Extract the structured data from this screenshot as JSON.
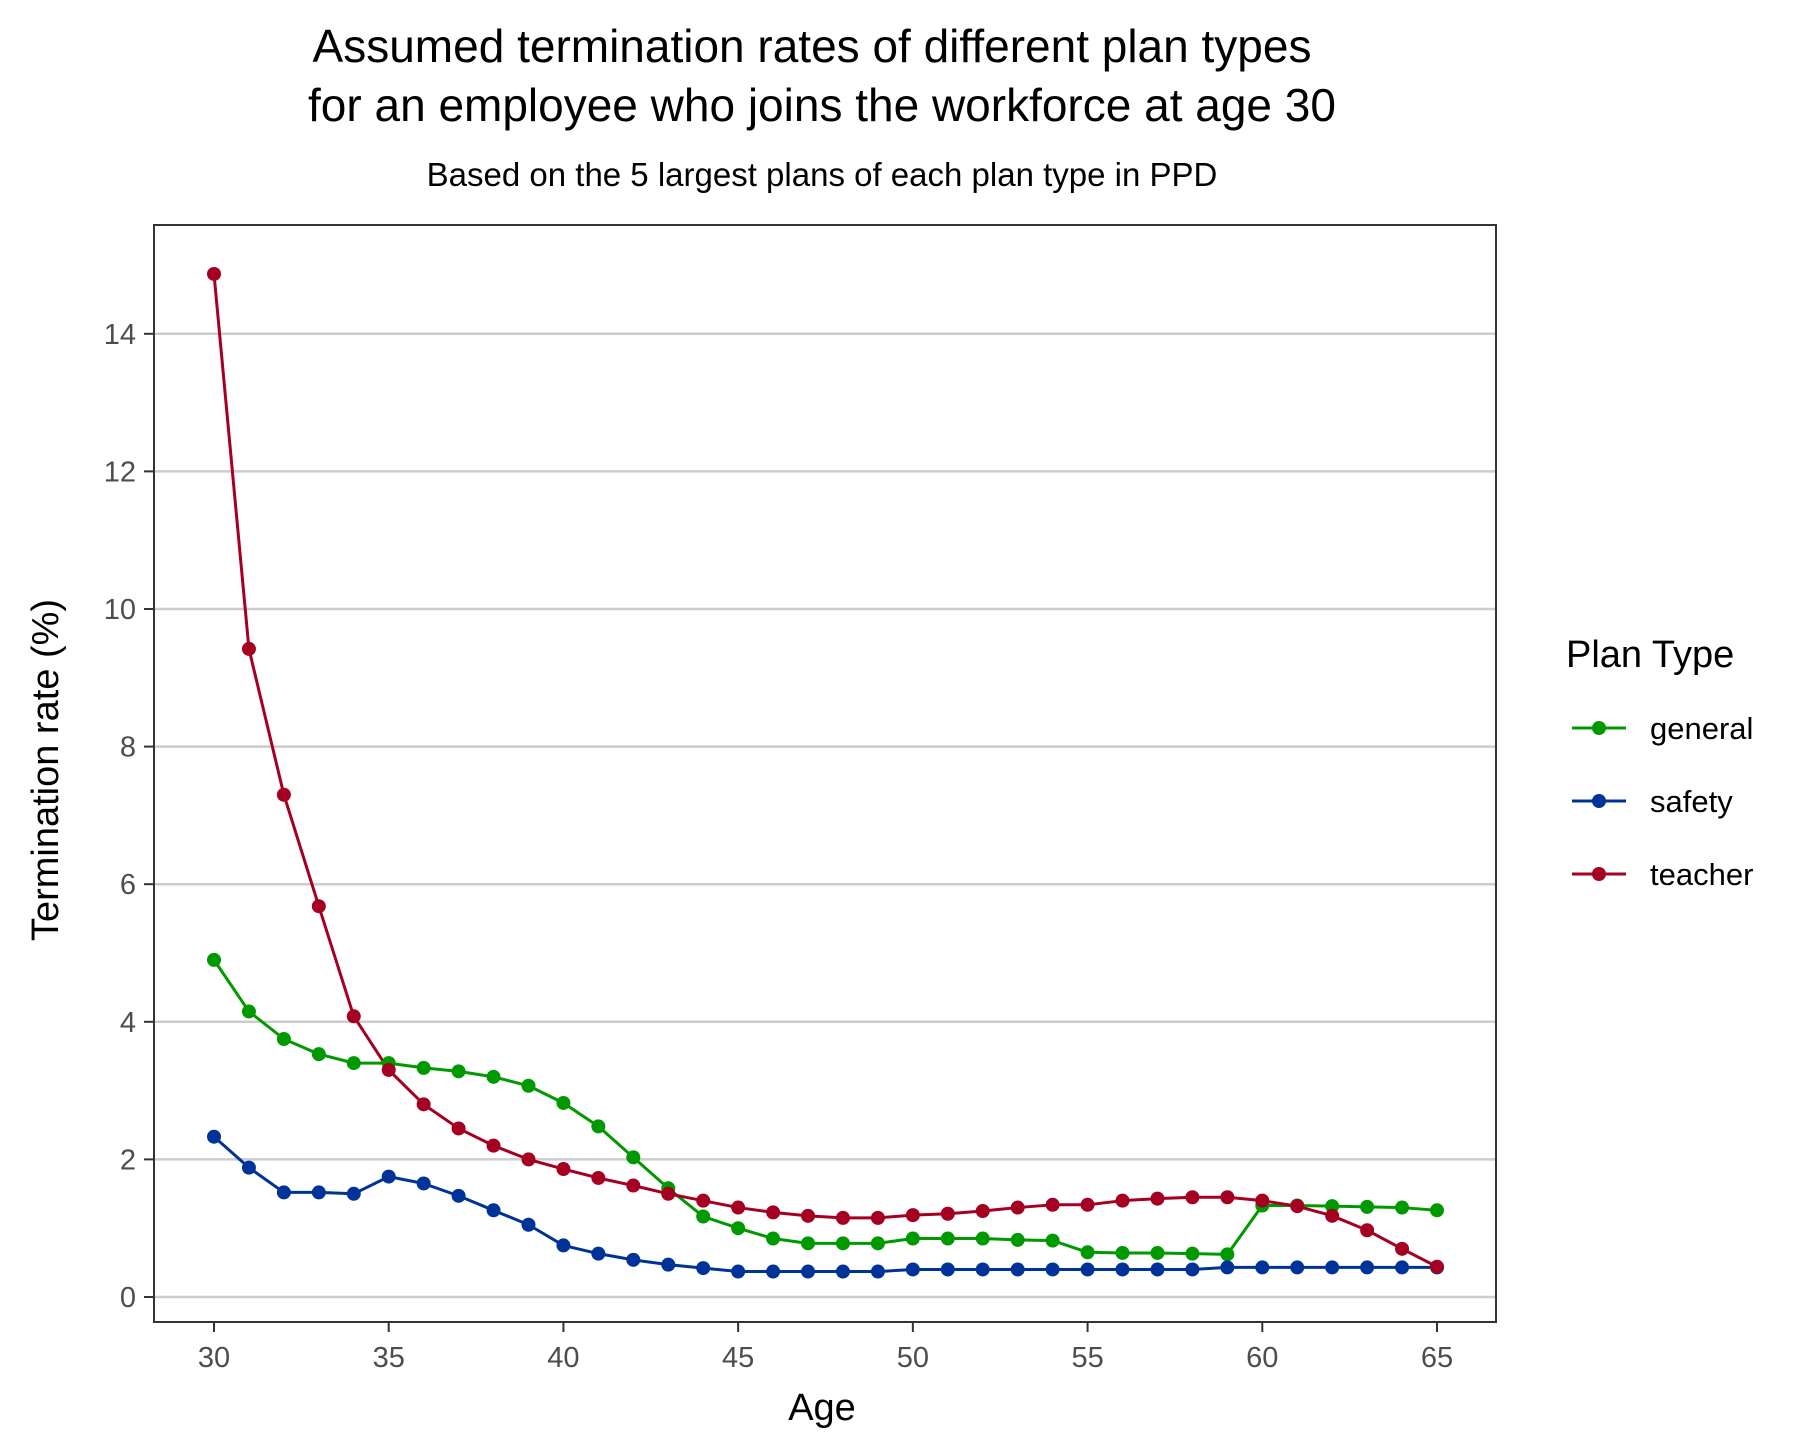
{
  "chart_data": {
    "type": "line",
    "title_line1": "Assumed termination rates of different plan types",
    "title_line2": "for an employee who joins the workforce at age 30",
    "subtitle": "Based on the 5 largest plans of each plan type in PPD",
    "xlabel": "Age",
    "ylabel": "Termination rate (%)",
    "xlim": [
      30,
      65
    ],
    "ylim": [
      0,
      15
    ],
    "x_ticks": [
      "30",
      "35",
      "40",
      "45",
      "50",
      "55",
      "60",
      "65"
    ],
    "y_ticks": [
      "0",
      "2",
      "4",
      "6",
      "8",
      "10",
      "12",
      "14"
    ],
    "grid": "horizontal major",
    "legend_title": "Plan Type",
    "legend_position": "right",
    "x": [
      30,
      31,
      32,
      33,
      34,
      35,
      36,
      37,
      38,
      39,
      40,
      41,
      42,
      43,
      44,
      45,
      46,
      47,
      48,
      49,
      50,
      51,
      52,
      53,
      54,
      55,
      56,
      57,
      58,
      59,
      60,
      61,
      62,
      63,
      64,
      65
    ],
    "series": [
      {
        "name": "general",
        "color": "#009900",
        "values": [
          4.9,
          4.15,
          3.75,
          3.53,
          3.4,
          3.4,
          3.33,
          3.28,
          3.2,
          3.07,
          2.82,
          2.48,
          2.03,
          1.58,
          1.17,
          1.0,
          0.85,
          0.78,
          0.78,
          0.78,
          0.85,
          0.85,
          0.85,
          0.83,
          0.82,
          0.65,
          0.64,
          0.64,
          0.63,
          0.62,
          1.33,
          1.33,
          1.32,
          1.31,
          1.3,
          1.26
        ]
      },
      {
        "name": "safety",
        "color": "#003399",
        "values": [
          2.33,
          1.88,
          1.52,
          1.52,
          1.5,
          1.75,
          1.65,
          1.47,
          1.26,
          1.05,
          0.75,
          0.63,
          0.54,
          0.47,
          0.42,
          0.37,
          0.37,
          0.37,
          0.37,
          0.37,
          0.4,
          0.4,
          0.4,
          0.4,
          0.4,
          0.4,
          0.4,
          0.4,
          0.4,
          0.43,
          0.43,
          0.43,
          0.43,
          0.43,
          0.43,
          0.43
        ]
      },
      {
        "name": "teacher",
        "color": "#A50021",
        "values": [
          14.87,
          9.42,
          7.3,
          5.68,
          4.08,
          3.3,
          2.8,
          2.45,
          2.2,
          2.0,
          1.86,
          1.73,
          1.62,
          1.5,
          1.4,
          1.3,
          1.23,
          1.18,
          1.15,
          1.15,
          1.19,
          1.21,
          1.25,
          1.3,
          1.34,
          1.34,
          1.4,
          1.43,
          1.45,
          1.45,
          1.4,
          1.32,
          1.18,
          0.97,
          0.7,
          0.44
        ]
      }
    ]
  }
}
